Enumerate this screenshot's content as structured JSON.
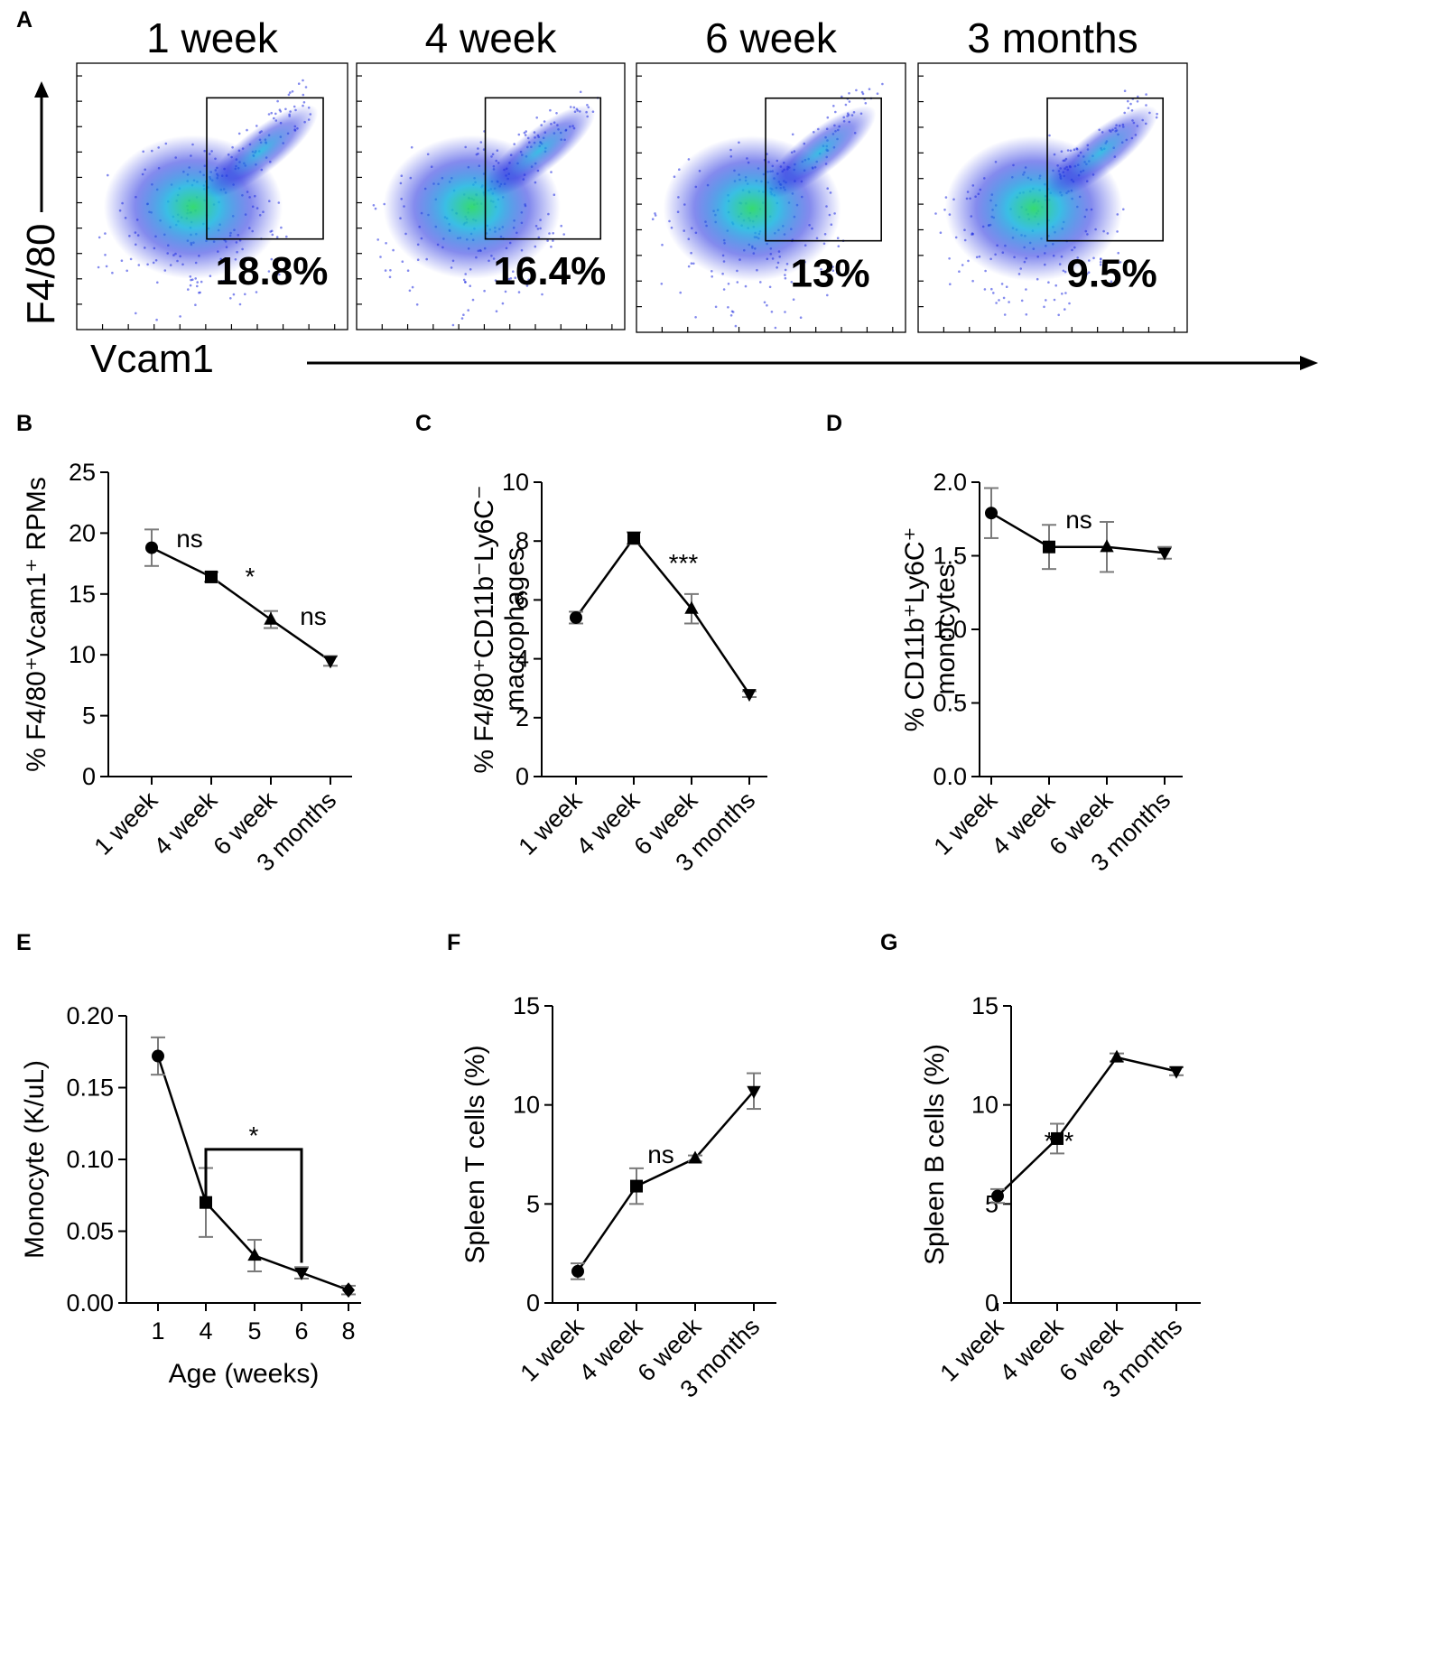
{
  "panel_letters": {
    "a": "A",
    "b": "B",
    "c": "C",
    "d": "D",
    "e": "E",
    "f": "F",
    "g": "G"
  },
  "colors": {
    "line": "#000000",
    "error_bar": "#7a7a7a",
    "density_low": "#1f2ce0",
    "density_mid": "#17b3e0",
    "density_high": "#2cd86a",
    "gate": "#000000"
  },
  "flow": {
    "y_label": "F4/80",
    "x_label": "Vcam1",
    "panels": [
      {
        "title": "1 week",
        "gate_percent": "18.8%"
      },
      {
        "title": "4 week",
        "gate_percent": "16.4%"
      },
      {
        "title": "6 week",
        "gate_percent": "13%"
      },
      {
        "title": "3 months",
        "gate_percent": "9.5%"
      }
    ]
  },
  "chart_data": [
    {
      "id": "B",
      "type": "line",
      "categories": [
        "1 week",
        "4 week",
        "6 week",
        "3 months"
      ],
      "series": [
        {
          "name": "F4/80+Vcam1+ RPMs",
          "values": [
            18.8,
            16.4,
            12.9,
            9.5
          ],
          "errors": [
            1.5,
            0.4,
            0.7,
            0.4
          ],
          "markers": [
            "circle",
            "square",
            "triangle",
            "triangle-down"
          ]
        }
      ],
      "ylabel": "% F4/80⁺Vcam1⁺ RPMs",
      "ylim": [
        0,
        25
      ],
      "yticks": [
        "0",
        "5",
        "10",
        "15",
        "20",
        "25"
      ],
      "annotations": [
        {
          "text": "ns",
          "between": [
            0,
            1
          ]
        },
        {
          "text": "*",
          "between": [
            1,
            2
          ]
        },
        {
          "text": "ns",
          "between": [
            2,
            3
          ]
        }
      ]
    },
    {
      "id": "C",
      "type": "line",
      "categories": [
        "1 week",
        "4 week",
        "6 week",
        "3 months"
      ],
      "series": [
        {
          "name": "F4/80+CD11b-Ly6C- macrophages",
          "values": [
            5.4,
            8.1,
            5.7,
            2.8
          ],
          "errors": [
            0.2,
            0.2,
            0.5,
            0.1
          ],
          "markers": [
            "circle",
            "square",
            "triangle",
            "triangle-down"
          ]
        }
      ],
      "ylabel_line1": "% F4/80⁺CD11b⁻Ly6C⁻",
      "ylabel_line2": "macrophages",
      "ylim": [
        0,
        10
      ],
      "yticks": [
        "0",
        "2",
        "4",
        "6",
        "8",
        "10"
      ],
      "annotations": [
        {
          "text": "***",
          "between": [
            1,
            2
          ]
        }
      ]
    },
    {
      "id": "D",
      "type": "line",
      "categories": [
        "1 week",
        "4 week",
        "6 week",
        "3 months"
      ],
      "series": [
        {
          "name": "CD11b+Ly6C+ monocytes",
          "values": [
            1.79,
            1.56,
            1.56,
            1.52
          ],
          "errors": [
            0.17,
            0.15,
            0.17,
            0.04
          ],
          "markers": [
            "circle",
            "square",
            "triangle",
            "triangle-down"
          ]
        }
      ],
      "ylabel_line1": "% CD11b⁺Ly6C⁺",
      "ylabel_line2": "monocytes",
      "ylim": [
        0,
        2
      ],
      "yticks": [
        "0.0",
        "0.5",
        "1.0",
        "1.5",
        "2.0"
      ],
      "annotations": [
        {
          "text": "ns",
          "between": [
            1,
            2
          ]
        }
      ]
    },
    {
      "id": "E",
      "type": "line",
      "x": [
        1,
        4,
        5,
        6,
        8
      ],
      "x_tick_labels": [
        "1",
        "4",
        "5",
        "6",
        "8"
      ],
      "series": [
        {
          "name": "Monocyte",
          "values": [
            0.172,
            0.07,
            0.033,
            0.021,
            0.009
          ],
          "errors": [
            0.013,
            0.024,
            0.011,
            0.004,
            0.003
          ],
          "markers": [
            "circle",
            "square",
            "triangle",
            "triangle-down",
            "diamond"
          ]
        }
      ],
      "xlabel": "Age (weeks)",
      "ylabel": "Monocyte (K/uL)",
      "ylim": [
        0,
        0.2
      ],
      "yticks": [
        "0.00",
        "0.05",
        "0.10",
        "0.15",
        "0.20"
      ],
      "annotations": [
        {
          "text": "*",
          "bracket": [
            4,
            6
          ]
        }
      ]
    },
    {
      "id": "F",
      "type": "line",
      "categories": [
        "1 week",
        "4 week",
        "6 week",
        "3 months"
      ],
      "series": [
        {
          "name": "Spleen T cells",
          "values": [
            1.6,
            5.9,
            7.3,
            10.7
          ],
          "errors": [
            0.4,
            0.9,
            0.15,
            0.9
          ],
          "markers": [
            "circle",
            "square",
            "triangle",
            "triangle-down"
          ]
        }
      ],
      "ylabel": "Spleen T cells (%)",
      "ylim": [
        0,
        15
      ],
      "yticks": [
        "0",
        "5",
        "10",
        "15"
      ],
      "annotations": [
        {
          "text": "ns",
          "between": [
            1,
            1
          ]
        }
      ]
    },
    {
      "id": "G",
      "type": "line",
      "categories": [
        "1 week",
        "4 week",
        "6 week",
        "3 months"
      ],
      "series": [
        {
          "name": "Spleen B cells",
          "values": [
            5.4,
            8.3,
            12.4,
            11.7
          ],
          "errors": [
            0.35,
            0.75,
            0.2,
            0.2
          ],
          "markers": [
            "circle",
            "square",
            "triangle",
            "triangle-down"
          ]
        }
      ],
      "ylabel": "Spleen B cells (%)",
      "ylim": [
        0,
        15
      ],
      "yticks": [
        "0",
        "5",
        "10",
        "15"
      ],
      "annotations": [
        {
          "text": "***",
          "between": [
            0,
            1
          ]
        }
      ]
    }
  ]
}
